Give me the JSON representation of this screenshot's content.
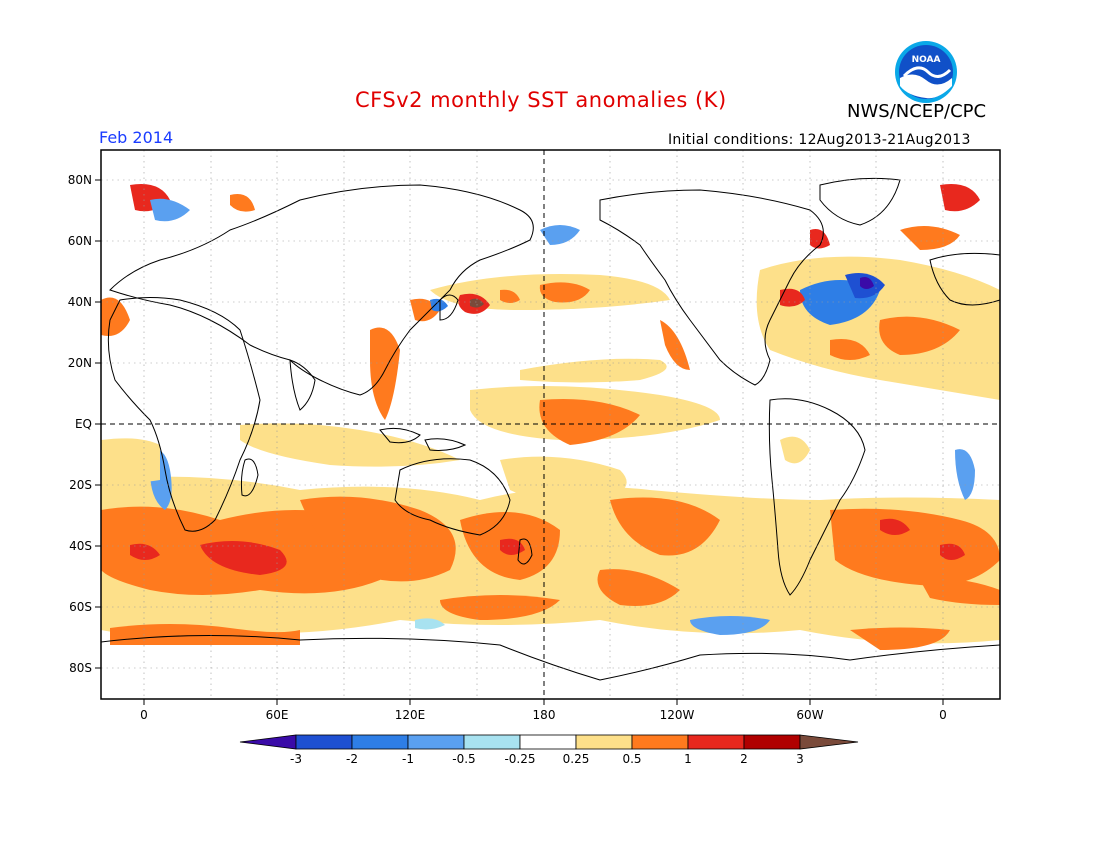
{
  "header": {
    "title": "CFSv2 monthly SST anomalies (K)",
    "organization": "NWS/NCEP/CPC",
    "period": "Feb 2014",
    "initial_conditions": "Initial conditions: 12Aug2013-21Aug2013",
    "logo_text": "NOAA"
  },
  "axes": {
    "lat_labels": [
      "80N",
      "60N",
      "40N",
      "20N",
      "EQ",
      "20S",
      "40S",
      "60S",
      "80S"
    ],
    "lon_labels": [
      "0",
      "60E",
      "120E",
      "180",
      "120W",
      "60W",
      "0"
    ]
  },
  "legend": {
    "ticks": [
      "-3",
      "-2",
      "-1",
      "-0.5",
      "-0.25",
      "0.25",
      "0.5",
      "1",
      "2",
      "3"
    ],
    "colors": [
      "#3a0ba8",
      "#1e50d2",
      "#2e7ee6",
      "#5aa0f0",
      "#a8e2f0",
      "#ffffff",
      "#fde08a",
      "#ff7a1e",
      "#e8281e",
      "#b00000",
      "#7a4a3a"
    ]
  },
  "colors": {
    "title": "#e00000",
    "period": "#1a3cff",
    "land_outline": "#000000"
  }
}
